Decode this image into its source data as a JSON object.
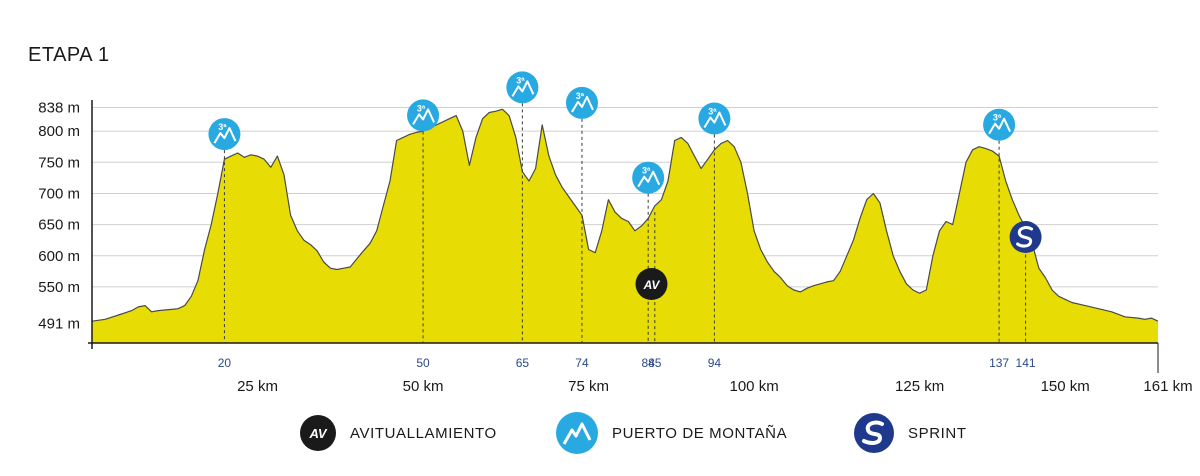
{
  "title": "ETAPA 1",
  "legend": {
    "av": {
      "badge": "AV",
      "label": "AVITUALLAMIENTO"
    },
    "mountain": {
      "badge": "3ª",
      "label": "PUERTO DE MONTAÑA"
    },
    "sprint": {
      "label": "SPRINT"
    }
  },
  "colors": {
    "fill": "#e8dc05",
    "stroke": "#4a4a4a",
    "grid": "#d0d0d0",
    "mountain": "#29a9e1",
    "marker_km": "#2b4a8b",
    "av": "#1a1a1a",
    "sprint": "#1f3a8c"
  },
  "chart_data": {
    "type": "area",
    "title": "ETAPA 1",
    "xlim": [
      0,
      161
    ],
    "ylim": [
      460,
      850
    ],
    "y_ticks": [
      {
        "value": 491,
        "label": "491 m"
      },
      {
        "value": 550,
        "label": "550 m"
      },
      {
        "value": 600,
        "label": "600 m"
      },
      {
        "value": 650,
        "label": "650 m"
      },
      {
        "value": 700,
        "label": "700 m"
      },
      {
        "value": 750,
        "label": "750 m"
      },
      {
        "value": 800,
        "label": "800 m"
      },
      {
        "value": 838,
        "label": "838 m"
      }
    ],
    "x_ticks": [
      {
        "value": 25,
        "label": "25 km"
      },
      {
        "value": 50,
        "label": "50 km"
      },
      {
        "value": 75,
        "label": "75 km"
      },
      {
        "value": 100,
        "label": "100 km"
      },
      {
        "value": 125,
        "label": "125 km"
      },
      {
        "value": 150,
        "label": "150 km"
      },
      {
        "value": 161,
        "label": "161 km"
      }
    ],
    "markers": [
      {
        "km": 20,
        "label": "20",
        "type": "mountain",
        "category": "3ª",
        "elev": 760
      },
      {
        "km": 50,
        "label": "50",
        "type": "mountain",
        "category": "3ª",
        "elev": 790
      },
      {
        "km": 65,
        "label": "65",
        "type": "mountain",
        "category": "3ª",
        "elev": 835
      },
      {
        "km": 74,
        "label": "74",
        "type": "mountain",
        "category": "3ª",
        "elev": 810
      },
      {
        "km": 84,
        "label": "84",
        "type": "av",
        "badge": "AV",
        "elev": 690
      },
      {
        "km": 85,
        "label": "85",
        "type": "av",
        "badge": "AV",
        "elev": 670
      },
      {
        "km": 84,
        "label": "",
        "type": "mountain",
        "category": "3ª",
        "elev": 690
      },
      {
        "km": 94,
        "label": "94",
        "type": "mountain",
        "category": "3ª",
        "elev": 785
      },
      {
        "km": 137,
        "label": "137",
        "type": "mountain",
        "category": "3ª",
        "elev": 775
      },
      {
        "km": 141,
        "label": "141",
        "type": "sprint",
        "elev": 650
      }
    ],
    "series": [
      {
        "x": [
          0,
          2,
          4,
          6,
          7,
          8,
          9,
          10,
          12,
          13,
          14,
          15,
          16,
          17,
          18,
          19,
          20,
          21,
          22,
          23,
          24,
          25,
          26,
          27,
          28,
          29,
          30,
          31,
          32,
          33,
          34,
          35,
          36,
          37,
          38,
          39,
          40,
          41,
          42,
          43,
          44,
          45,
          46,
          47,
          48,
          49,
          50,
          51,
          52,
          53,
          54,
          55,
          56,
          57,
          58,
          59,
          60,
          61,
          62,
          63,
          64,
          65,
          66,
          67,
          68,
          69,
          70,
          71,
          72,
          73,
          74,
          75,
          76,
          77,
          78,
          79,
          80,
          81,
          82,
          83,
          84,
          85,
          86,
          87,
          88,
          89,
          90,
          91,
          92,
          93,
          94,
          95,
          96,
          97,
          98,
          99,
          100,
          101,
          102,
          103,
          104,
          105,
          106,
          107,
          108,
          109,
          110,
          111,
          112,
          113,
          114,
          115,
          116,
          117,
          118,
          119,
          120,
          121,
          122,
          123,
          124,
          125,
          126,
          127,
          128,
          129,
          130,
          131,
          132,
          133,
          134,
          135,
          136,
          137,
          138,
          139,
          140,
          141,
          142,
          143,
          144,
          145,
          146,
          147,
          148,
          150,
          152,
          154,
          156,
          158,
          159,
          160,
          161
        ],
        "y": [
          495,
          498,
          505,
          512,
          518,
          520,
          510,
          512,
          514,
          515,
          520,
          535,
          560,
          610,
          650,
          700,
          755,
          760,
          765,
          758,
          762,
          760,
          755,
          742,
          760,
          730,
          665,
          640,
          625,
          618,
          608,
          590,
          580,
          578,
          580,
          582,
          595,
          608,
          620,
          640,
          680,
          720,
          785,
          790,
          795,
          798,
          800,
          805,
          810,
          815,
          820,
          825,
          800,
          745,
          790,
          820,
          830,
          832,
          835,
          825,
          790,
          735,
          720,
          740,
          810,
          760,
          730,
          710,
          695,
          680,
          665,
          610,
          605,
          640,
          690,
          670,
          660,
          655,
          640,
          648,
          660,
          680,
          690,
          720,
          785,
          790,
          780,
          760,
          740,
          755,
          770,
          780,
          785,
          775,
          750,
          700,
          640,
          610,
          590,
          575,
          565,
          552,
          545,
          542,
          548,
          552,
          555,
          558,
          560,
          575,
          600,
          625,
          660,
          690,
          700,
          685,
          640,
          600,
          575,
          555,
          545,
          540,
          545,
          600,
          640,
          655,
          650,
          700,
          750,
          770,
          775,
          772,
          768,
          760,
          720,
          690,
          665,
          645,
          620,
          580,
          565,
          545,
          535,
          530,
          525,
          520,
          515,
          510,
          502,
          500,
          498,
          500,
          495
        ],
        "label": "",
        "area": true
      }
    ]
  }
}
